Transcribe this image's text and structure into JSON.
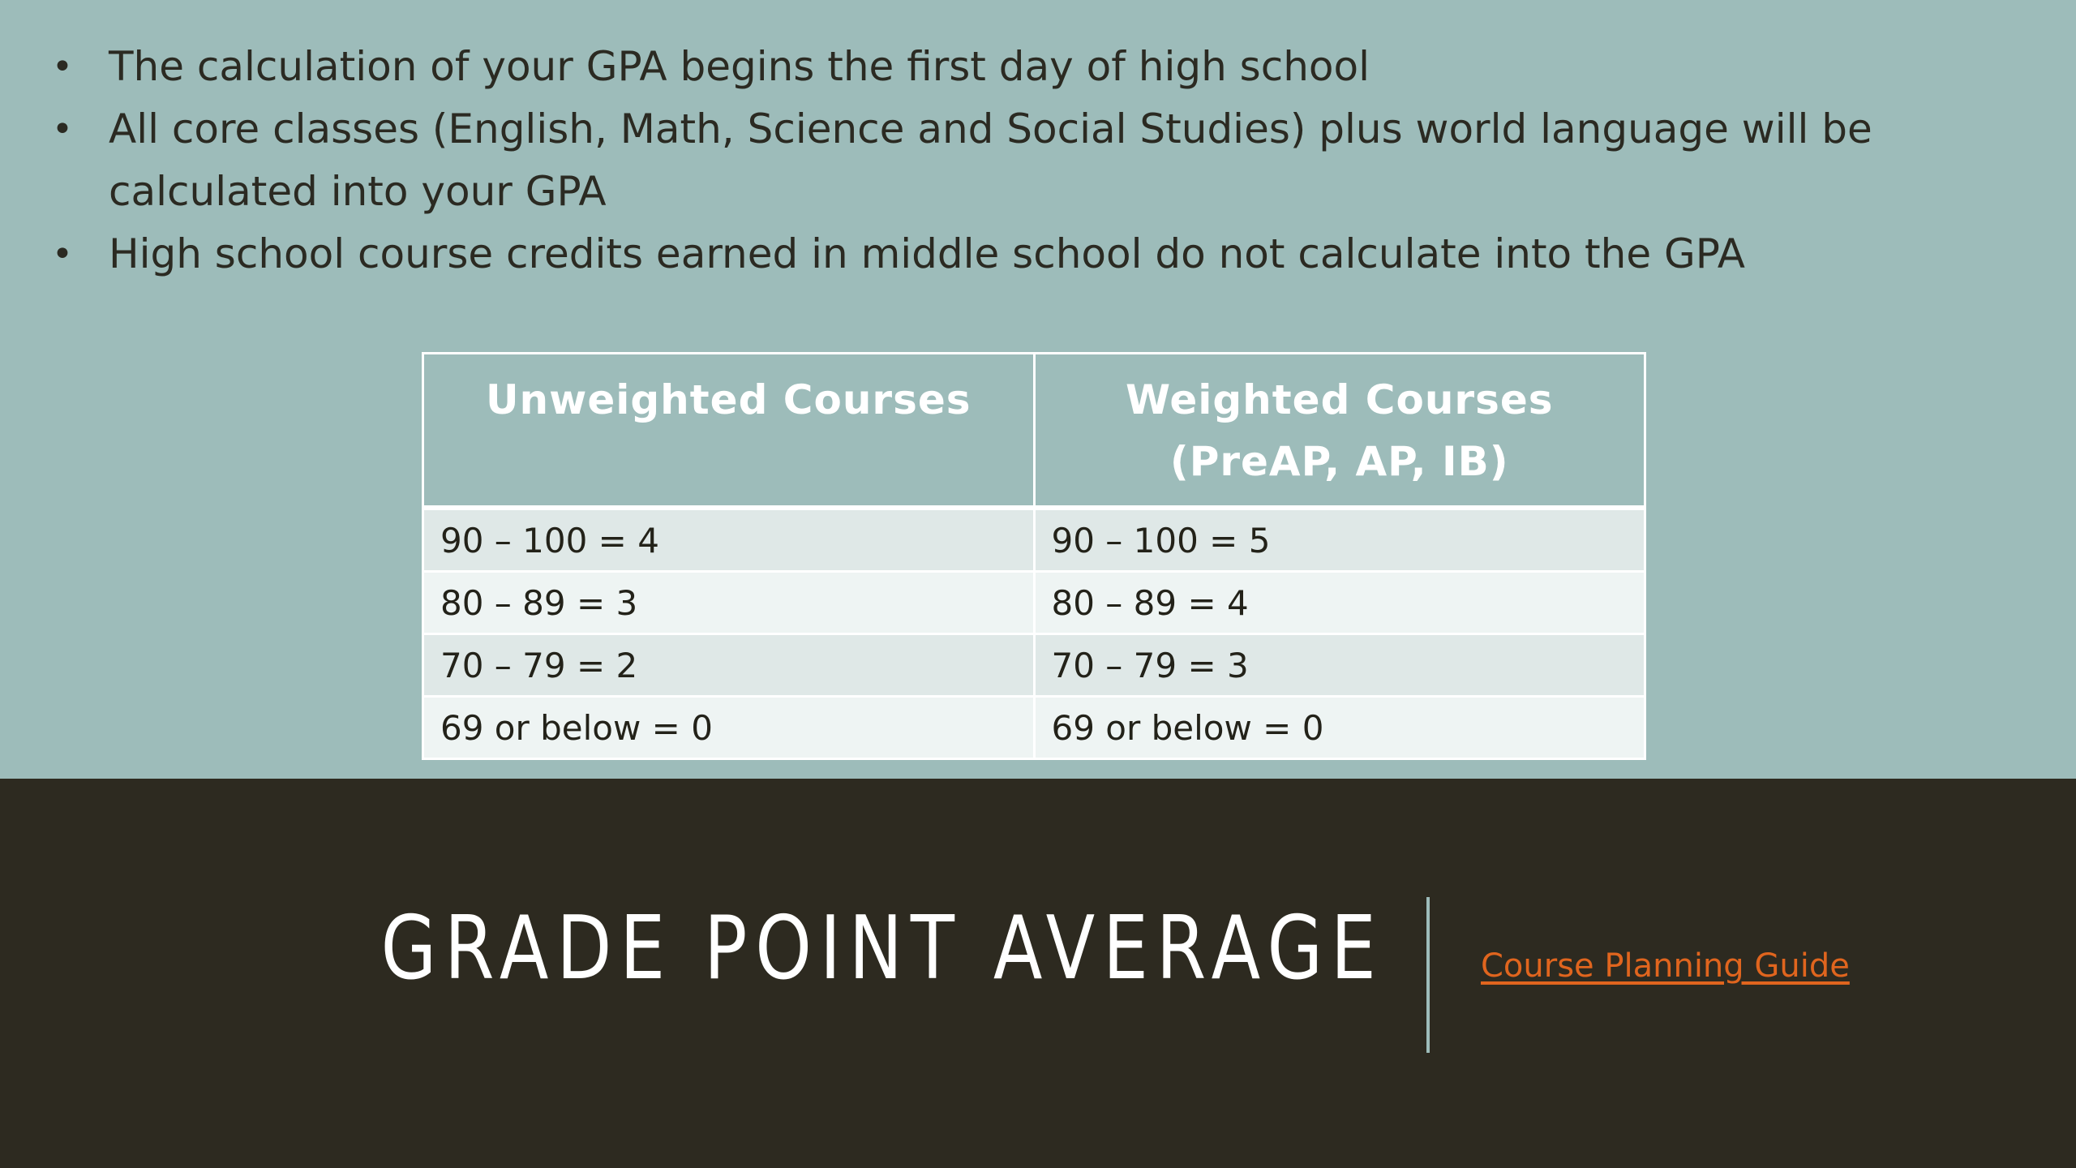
{
  "bullets": [
    "The calculation of your GPA begins the first day of high school",
    "All core classes (English, Math, Science and Social Studies) plus world language will be calculated into your GPA",
    "High school course credits earned in middle school do not calculate into the GPA"
  ],
  "bullet_symbol": "•",
  "table": {
    "headers": [
      "Unweighted Courses",
      "Weighted Courses (PreAP, AP, IB)"
    ],
    "rows": [
      [
        "90 – 100 = 4",
        "90 – 100 = 5"
      ],
      [
        "80 – 89 = 3",
        "80 – 89 = 4"
      ],
      [
        "70 – 79 = 2",
        "70 – 79 = 3"
      ],
      [
        "69 or below = 0",
        "69 or below = 0"
      ]
    ]
  },
  "title": "GRADE POINT AVERAGE",
  "link": {
    "label": "Course Planning Guide"
  },
  "colors": {
    "background_top": "#9dbcba",
    "background_bottom": "#2d2a20",
    "link": "#e0651e",
    "text_dark": "#2b2a22"
  }
}
